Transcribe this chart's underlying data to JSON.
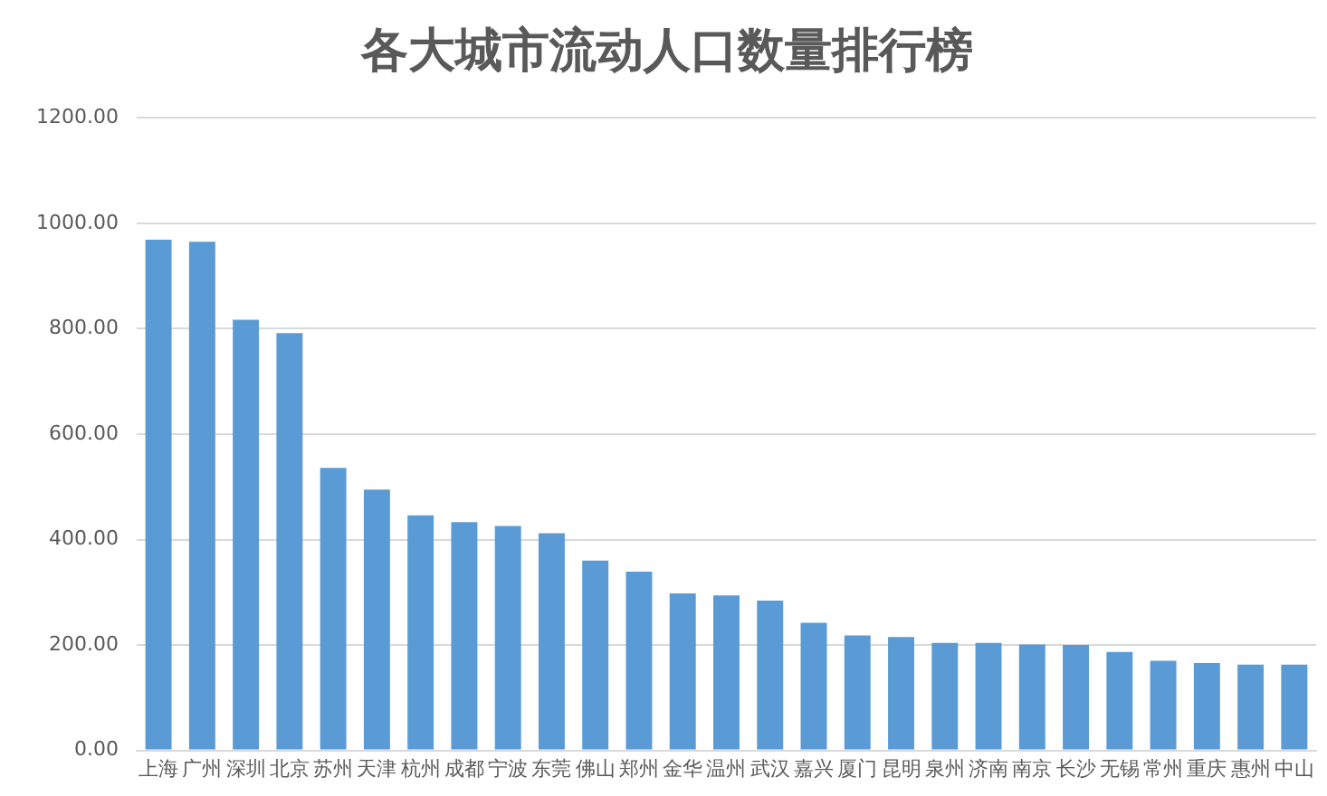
{
  "chart_data": {
    "type": "bar",
    "title": "各大城市流动人口数量排行榜",
    "categories": [
      "上海",
      "广州",
      "深圳",
      "北京",
      "苏州",
      "天津",
      "杭州",
      "成都",
      "宁波",
      "东莞",
      "佛山",
      "郑州",
      "金华",
      "温州",
      "武汉",
      "嘉兴",
      "厦门",
      "昆明",
      "泉州",
      "济南",
      "南京",
      "长沙",
      "无锡",
      "常州",
      "重庆",
      "惠州",
      "中山"
    ],
    "values": [
      969,
      965,
      817,
      792,
      536,
      495,
      446,
      433,
      426,
      412,
      360,
      339,
      298,
      294,
      284,
      242,
      218,
      215,
      204,
      204,
      201,
      200,
      187,
      170,
      166,
      163,
      163
    ],
    "color": "#5b9bd5",
    "ylim": [
      0,
      1200
    ],
    "yticks": [
      {
        "value": 0,
        "label": "0.00"
      },
      {
        "value": 200,
        "label": "200.00"
      },
      {
        "value": 400,
        "label": "400.00"
      },
      {
        "value": 600,
        "label": "600.00"
      },
      {
        "value": 800,
        "label": "800.00"
      },
      {
        "value": 1000,
        "label": "1000.00"
      },
      {
        "value": 1200,
        "label": "1200.00"
      }
    ],
    "grid": "y",
    "legend": false
  }
}
